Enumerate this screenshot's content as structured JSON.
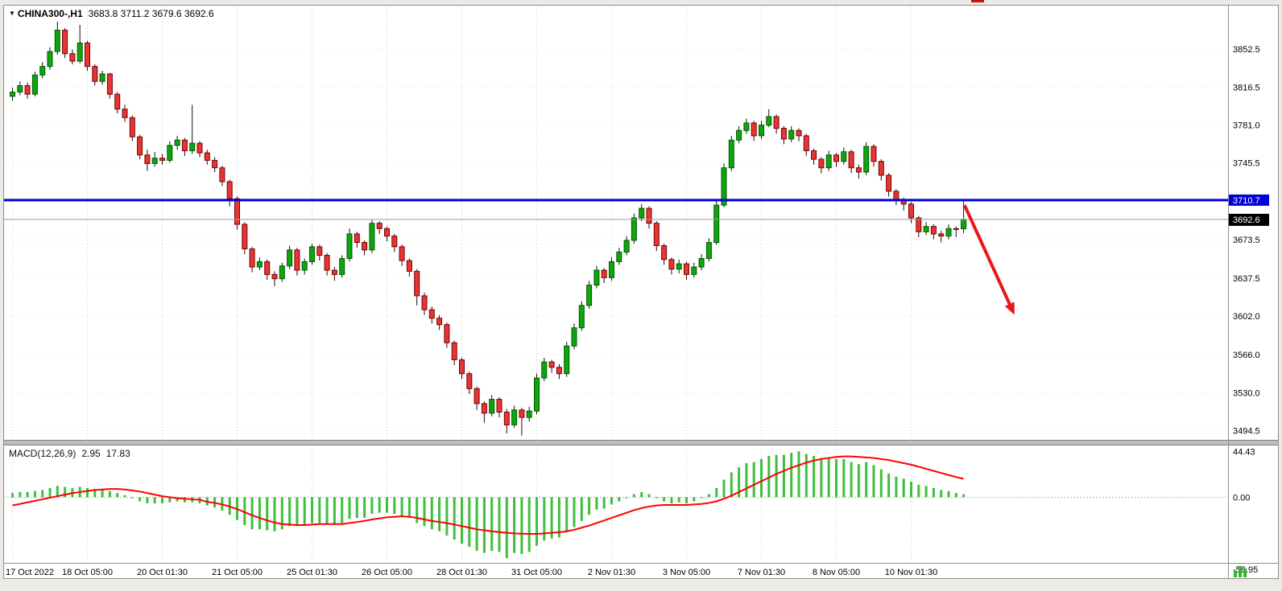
{
  "header": {
    "menu_triangle": "▼",
    "symbol": "CHINA300-,H1",
    "ohlc": "3683.8 3711.2 3679.6 3692.6"
  },
  "macd_header": {
    "label": "MACD(12,26,9)",
    "macd_value": "2.95",
    "signal_value": "17.83"
  },
  "colors": {
    "up_candle": "#0ea50e",
    "up_edge": "#005a00",
    "down_candle": "#e53535",
    "down_edge": "#7a0000",
    "wick": "#101010",
    "macd_histogram": "#3fbf3f",
    "macd_signal": "#ff0000",
    "hline": "#0000d8",
    "bid_line": "#9b9b9b",
    "price_tag_bg": "#000000",
    "arrow": "#e81818",
    "grid": "#c6c6c6"
  },
  "chart_data": [
    {
      "type": "candlestick",
      "symbol": "CHINA300-",
      "timeframe": "H1",
      "last_bar": {
        "open": 3683.8,
        "high": 3711.2,
        "low": 3679.6,
        "close": 3692.6
      },
      "ylim": [
        3486,
        3890
      ],
      "y_ticks": [
        "3852.5",
        "3816.5",
        "3781.0",
        "3745.5",
        "3710.0",
        "3673.5",
        "3637.5",
        "3602.0",
        "3566.0",
        "3530.0",
        "3494.5"
      ],
      "x_ticks": [
        {
          "index": 0,
          "label": "17 Oct 2022"
        },
        {
          "index": 10,
          "label": "18 Oct 05:00"
        },
        {
          "index": 20,
          "label": "20 Oct 01:30"
        },
        {
          "index": 30,
          "label": "21 Oct 05:00"
        },
        {
          "index": 40,
          "label": "25 Oct 01:30"
        },
        {
          "index": 50,
          "label": "26 Oct 05:00"
        },
        {
          "index": 60,
          "label": "28 Oct 01:30"
        },
        {
          "index": 70,
          "label": "31 Oct 05:00"
        },
        {
          "index": 80,
          "label": "2 Nov 01:30"
        },
        {
          "index": 90,
          "label": "3 Nov 05:00"
        },
        {
          "index": 100,
          "label": "7 Nov 01:30"
        },
        {
          "index": 110,
          "label": "8 Nov 05:00"
        },
        {
          "index": 120,
          "label": "10 Nov 01:30"
        }
      ],
      "hline": {
        "value": 3710.7,
        "label": "3710.7"
      },
      "bid": {
        "value": 3692.6,
        "label": "3692.6"
      },
      "arrow": {
        "from_index": 127.5,
        "from_price": 3706,
        "to_index": 133.6,
        "to_price": 3612
      },
      "candles": [
        [
          3808,
          3816,
          3804,
          3812
        ],
        [
          3812,
          3822,
          3809,
          3818
        ],
        [
          3818,
          3821,
          3806,
          3810
        ],
        [
          3810,
          3831,
          3808,
          3828
        ],
        [
          3828,
          3840,
          3825,
          3836
        ],
        [
          3836,
          3854,
          3833,
          3850
        ],
        [
          3850,
          3878,
          3847,
          3870
        ],
        [
          3870,
          3872,
          3844,
          3848
        ],
        [
          3848,
          3852,
          3838,
          3841
        ],
        [
          3841,
          3875,
          3839,
          3858
        ],
        [
          3858,
          3860,
          3832,
          3836
        ],
        [
          3836,
          3838,
          3818,
          3822
        ],
        [
          3822,
          3832,
          3819,
          3829
        ],
        [
          3829,
          3830,
          3806,
          3810
        ],
        [
          3810,
          3812,
          3792,
          3796
        ],
        [
          3796,
          3800,
          3784,
          3788
        ],
        [
          3788,
          3790,
          3766,
          3770
        ],
        [
          3770,
          3772,
          3749,
          3753
        ],
        [
          3753,
          3758,
          3738,
          3745
        ],
        [
          3745,
          3756,
          3742,
          3750
        ],
        [
          3750,
          3754,
          3744,
          3748
        ],
        [
          3748,
          3766,
          3746,
          3762
        ],
        [
          3762,
          3771,
          3758,
          3767
        ],
        [
          3767,
          3769,
          3752,
          3757
        ],
        [
          3757,
          3800,
          3754,
          3764
        ],
        [
          3764,
          3766,
          3751,
          3755
        ],
        [
          3755,
          3758,
          3744,
          3748
        ],
        [
          3748,
          3751,
          3737,
          3741
        ],
        [
          3741,
          3743,
          3724,
          3728
        ],
        [
          3728,
          3730,
          3705,
          3712
        ],
        [
          3712,
          3714,
          3683,
          3688
        ],
        [
          3688,
          3690,
          3660,
          3665
        ],
        [
          3665,
          3667,
          3643,
          3648
        ],
        [
          3648,
          3657,
          3645,
          3653
        ],
        [
          3653,
          3655,
          3636,
          3641
        ],
        [
          3641,
          3644,
          3630,
          3637
        ],
        [
          3637,
          3652,
          3634,
          3649
        ],
        [
          3649,
          3668,
          3646,
          3664
        ],
        [
          3664,
          3666,
          3640,
          3645
        ],
        [
          3645,
          3656,
          3641,
          3653
        ],
        [
          3653,
          3670,
          3650,
          3667
        ],
        [
          3667,
          3669,
          3654,
          3659
        ],
        [
          3659,
          3661,
          3640,
          3645
        ],
        [
          3645,
          3648,
          3635,
          3641
        ],
        [
          3641,
          3659,
          3638,
          3656
        ],
        [
          3656,
          3684,
          3653,
          3679
        ],
        [
          3679,
          3681,
          3666,
          3671
        ],
        [
          3671,
          3673,
          3659,
          3664
        ],
        [
          3664,
          3692,
          3661,
          3689
        ],
        [
          3689,
          3691,
          3679,
          3684
        ],
        [
          3684,
          3686,
          3672,
          3677
        ],
        [
          3677,
          3679,
          3662,
          3667
        ],
        [
          3667,
          3669,
          3649,
          3654
        ],
        [
          3654,
          3656,
          3639,
          3644
        ],
        [
          3644,
          3646,
          3612,
          3621
        ],
        [
          3621,
          3624,
          3603,
          3608
        ],
        [
          3608,
          3611,
          3595,
          3600
        ],
        [
          3600,
          3603,
          3589,
          3594
        ],
        [
          3594,
          3596,
          3572,
          3577
        ],
        [
          3577,
          3579,
          3556,
          3561
        ],
        [
          3561,
          3563,
          3543,
          3548
        ],
        [
          3548,
          3550,
          3529,
          3534
        ],
        [
          3534,
          3536,
          3514,
          3520
        ],
        [
          3520,
          3522,
          3502,
          3511
        ],
        [
          3511,
          3528,
          3508,
          3524
        ],
        [
          3524,
          3526,
          3507,
          3512
        ],
        [
          3512,
          3515,
          3492,
          3500
        ],
        [
          3500,
          3518,
          3497,
          3514
        ],
        [
          3514,
          3516,
          3490,
          3507
        ],
        [
          3507,
          3517,
          3503,
          3513
        ],
        [
          3513,
          3548,
          3510,
          3544
        ],
        [
          3544,
          3563,
          3541,
          3559
        ],
        [
          3559,
          3561,
          3549,
          3554
        ],
        [
          3554,
          3557,
          3543,
          3548
        ],
        [
          3548,
          3578,
          3545,
          3574
        ],
        [
          3574,
          3595,
          3571,
          3591
        ],
        [
          3591,
          3616,
          3588,
          3612
        ],
        [
          3612,
          3635,
          3609,
          3631
        ],
        [
          3631,
          3649,
          3628,
          3645
        ],
        [
          3645,
          3647,
          3633,
          3638
        ],
        [
          3638,
          3657,
          3635,
          3653
        ],
        [
          3653,
          3666,
          3650,
          3662
        ],
        [
          3662,
          3677,
          3659,
          3673
        ],
        [
          3673,
          3698,
          3670,
          3694
        ],
        [
          3694,
          3707,
          3691,
          3703
        ],
        [
          3703,
          3705,
          3684,
          3689
        ],
        [
          3689,
          3691,
          3663,
          3668
        ],
        [
          3668,
          3670,
          3650,
          3655
        ],
        [
          3655,
          3657,
          3641,
          3646
        ],
        [
          3646,
          3655,
          3642,
          3651
        ],
        [
          3651,
          3653,
          3636,
          3641
        ],
        [
          3641,
          3652,
          3638,
          3648
        ],
        [
          3648,
          3660,
          3645,
          3656
        ],
        [
          3656,
          3675,
          3653,
          3671
        ],
        [
          3671,
          3710,
          3669,
          3706
        ],
        [
          3706,
          3745,
          3704,
          3741
        ],
        [
          3741,
          3771,
          3738,
          3767
        ],
        [
          3767,
          3780,
          3764,
          3776
        ],
        [
          3776,
          3787,
          3773,
          3783
        ],
        [
          3783,
          3785,
          3766,
          3771
        ],
        [
          3771,
          3785,
          3768,
          3781
        ],
        [
          3781,
          3796,
          3779,
          3789
        ],
        [
          3789,
          3791,
          3773,
          3778
        ],
        [
          3778,
          3780,
          3763,
          3768
        ],
        [
          3768,
          3780,
          3765,
          3776
        ],
        [
          3776,
          3778,
          3766,
          3771
        ],
        [
          3771,
          3773,
          3752,
          3757
        ],
        [
          3757,
          3759,
          3744,
          3749
        ],
        [
          3749,
          3751,
          3736,
          3741
        ],
        [
          3741,
          3757,
          3738,
          3753
        ],
        [
          3753,
          3755,
          3742,
          3747
        ],
        [
          3747,
          3760,
          3744,
          3756
        ],
        [
          3756,
          3758,
          3736,
          3741
        ],
        [
          3741,
          3744,
          3731,
          3737
        ],
        [
          3737,
          3765,
          3734,
          3761
        ],
        [
          3761,
          3763,
          3742,
          3747
        ],
        [
          3747,
          3749,
          3729,
          3734
        ],
        [
          3734,
          3736,
          3714,
          3719
        ],
        [
          3719,
          3721,
          3706,
          3711
        ],
        [
          3711,
          3713,
          3701,
          3707
        ],
        [
          3707,
          3709,
          3689,
          3694
        ],
        [
          3694,
          3696,
          3676,
          3681
        ],
        [
          3681,
          3690,
          3678,
          3686
        ],
        [
          3686,
          3688,
          3674,
          3679
        ],
        [
          3679,
          3682,
          3671,
          3677
        ],
        [
          3677,
          3688,
          3674,
          3684
        ],
        [
          3684,
          3686,
          3676,
          3683.8
        ],
        [
          3683.8,
          3711.2,
          3679.6,
          3692.6
        ]
      ]
    },
    {
      "type": "macd",
      "label": "MACD(12,26,9)",
      "params": [
        12,
        26,
        9
      ],
      "macd_value": 2.95,
      "signal_value": 17.83,
      "ylim": [
        -62,
        47
      ],
      "y_ticks": [
        "44.43",
        "0.00",
        "-58.95"
      ],
      "histogram": [
        4,
        5,
        5,
        6,
        7,
        9,
        11,
        10,
        9,
        10,
        9,
        8,
        8,
        6,
        4,
        2,
        -1,
        -4,
        -6,
        -6,
        -6,
        -5,
        -4,
        -5,
        -5,
        -6,
        -8,
        -10,
        -13,
        -17,
        -22,
        -27,
        -31,
        -31,
        -32,
        -33,
        -31,
        -28,
        -28,
        -27,
        -25,
        -25,
        -26,
        -27,
        -25,
        -21,
        -20,
        -20,
        -16,
        -15,
        -15,
        -16,
        -18,
        -20,
        -25,
        -28,
        -31,
        -33,
        -37,
        -41,
        -45,
        -48,
        -52,
        -54,
        -52,
        -53,
        -58.95,
        -54,
        -55,
        -53,
        -47,
        -42,
        -40,
        -39,
        -34,
        -29,
        -23,
        -17,
        -12,
        -11,
        -7,
        -4,
        -1,
        3,
        5,
        3,
        -1,
        -4,
        -6,
        -5,
        -6,
        -4,
        -1,
        3,
        9,
        17,
        24,
        29,
        33,
        34,
        37,
        40,
        41,
        41,
        43,
        44.43,
        42,
        40,
        38,
        38,
        37,
        37,
        34,
        32,
        34,
        31,
        27,
        23,
        20,
        18,
        15,
        12,
        11,
        9,
        7,
        6,
        4,
        2.95
      ],
      "signal": [
        -8,
        -6.5,
        -5,
        -3.5,
        -2,
        -0.5,
        1,
        2.5,
        4,
        5,
        6,
        7,
        7.5,
        8,
        8,
        7.5,
        6.5,
        5.5,
        4,
        2.5,
        1,
        0,
        -1,
        -1.5,
        -2,
        -2.5,
        -4.5,
        -5.5,
        -7,
        -9,
        -11.5,
        -14.5,
        -17.5,
        -20,
        -22.5,
        -24.5,
        -26,
        -26.5,
        -27,
        -27,
        -26.5,
        -26,
        -26,
        -26,
        -26,
        -25,
        -24,
        -23,
        -21.5,
        -20.5,
        -19.5,
        -19,
        -18.5,
        -19,
        -20,
        -21.5,
        -23,
        -24,
        -25,
        -26.5,
        -28,
        -29.5,
        -31,
        -32,
        -33,
        -33.8,
        -34.5,
        -35,
        -35.3,
        -35.5,
        -35.5,
        -35,
        -34.5,
        -34,
        -33,
        -31.5,
        -29.5,
        -27.5,
        -25,
        -22.5,
        -20,
        -17.5,
        -15,
        -12.5,
        -10.5,
        -9,
        -8,
        -7.5,
        -7.5,
        -7.5,
        -7.5,
        -7,
        -6.5,
        -5.5,
        -4,
        -1.5,
        1.5,
        5,
        8.5,
        12,
        15.5,
        19,
        22.5,
        25.5,
        28.5,
        31,
        33.5,
        35.5,
        37,
        38,
        39,
        39.5,
        39.5,
        39,
        38.5,
        38,
        37,
        36,
        34.5,
        33,
        31.5,
        29.5,
        27.5,
        25.5,
        23.5,
        21.5,
        19.5,
        17.83
      ]
    }
  ]
}
